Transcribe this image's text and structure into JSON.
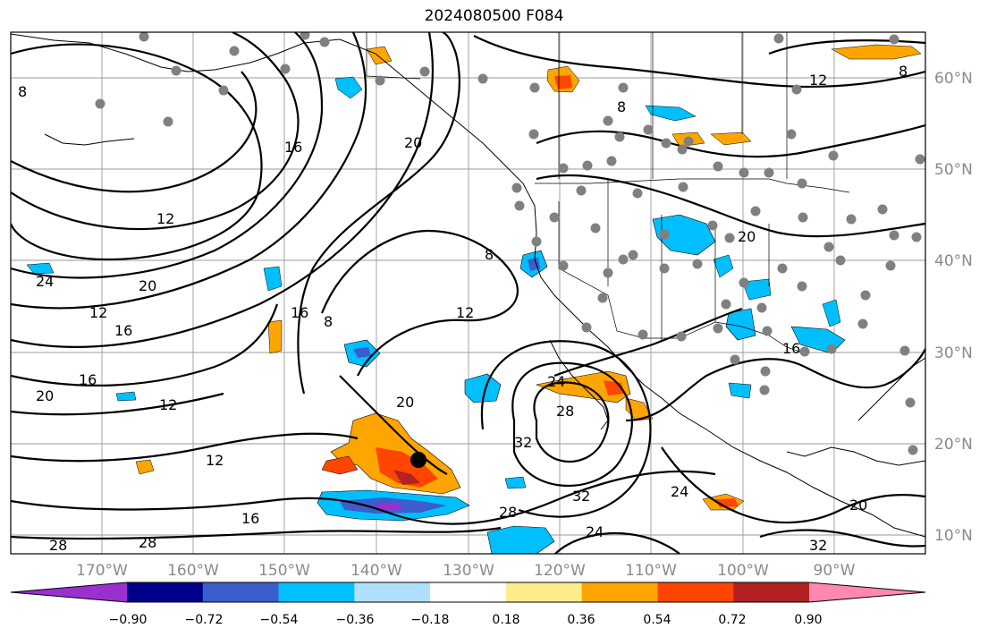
{
  "title": "2024080500 F084",
  "lat_labels": [
    "60°N",
    "50°N",
    "40°N",
    "30°N",
    "20°N",
    "10°N"
  ],
  "lon_labels": [
    "170°W",
    "160°W",
    "150°W",
    "140°W",
    "130°W",
    "120°W",
    "110°W",
    "100°W",
    "90°W"
  ],
  "colorbar": {
    "colors": [
      "#9b30d0",
      "#00008b",
      "#3a5fcd",
      "#00bfff",
      "#b0e0ff",
      "#ffffff",
      "#ffec8b",
      "#ffa500",
      "#ff4500",
      "#b22222",
      "#ff88b0"
    ],
    "tick_labels": [
      "−0.90",
      "−0.72",
      "−0.54",
      "−0.36",
      "−0.18",
      "0.18",
      "0.36",
      "0.54",
      "0.72",
      "0.90"
    ]
  },
  "contour_labels": [
    "8",
    "12",
    "16",
    "20",
    "24",
    "28",
    "32"
  ],
  "marker": "storm-center-dot"
}
